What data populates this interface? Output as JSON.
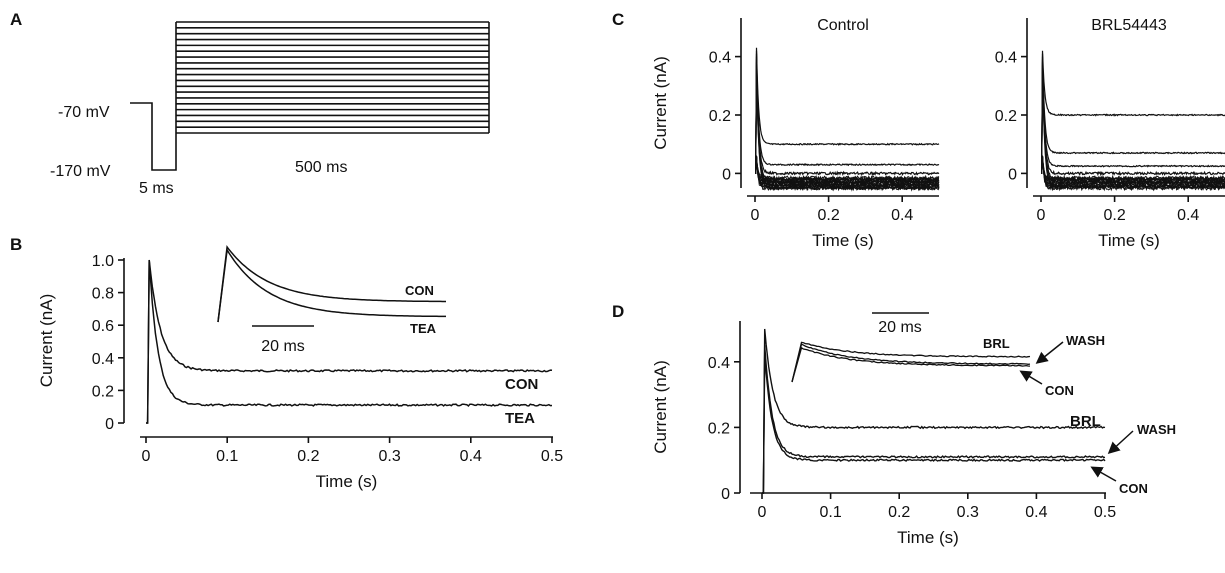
{
  "panels": {
    "A": {
      "label": "A",
      "hold_label": "-70 mV",
      "prepulse_label": "-170 mV",
      "prepulse_duration": "5 ms",
      "step_duration": "500 ms"
    },
    "B": {
      "label": "B"
    },
    "C": {
      "label": "C"
    },
    "D": {
      "label": "D"
    }
  },
  "chart_data": [
    {
      "id": "A",
      "type": "line",
      "title": "",
      "description_of_protocol": {
        "holding_mV": -70,
        "prepulse_mV": -170,
        "prepulse_ms": 5,
        "step_ms": 500,
        "step_count": 20
      }
    },
    {
      "id": "B",
      "type": "line",
      "xlabel": "Time (s)",
      "ylabel": "Current (nA)",
      "xlim": [
        0,
        0.5
      ],
      "ylim": [
        0,
        1.0
      ],
      "xticks": [
        "0",
        "0.1",
        "0.2",
        "0.3",
        "0.4",
        "0.5"
      ],
      "yticks": [
        "0",
        "0.2",
        "0.4",
        "0.6",
        "0.8",
        "1.0"
      ],
      "series": [
        {
          "name": "CON",
          "peak": 1.0,
          "steady": 0.32,
          "tau_s": 0.014
        },
        {
          "name": "TEA",
          "peak": 1.0,
          "steady": 0.11,
          "tau_s": 0.011
        }
      ],
      "inset": {
        "scale_bar": "20 ms",
        "labels": [
          "CON",
          "TEA"
        ]
      }
    },
    {
      "id": "C-control",
      "type": "line",
      "title": "Control",
      "xlabel": "Time (s)",
      "ylabel": "Current (nA)",
      "xlim": [
        0,
        0.5
      ],
      "ylim": [
        -0.05,
        0.45
      ],
      "xticks": [
        "0",
        "0.2",
        "0.4"
      ],
      "yticks": [
        "0",
        "0.2",
        "0.4"
      ],
      "steady_levels": [
        0.1,
        0.03,
        0.0,
        -0.02,
        -0.03,
        -0.04,
        -0.05
      ],
      "peak": 0.43
    },
    {
      "id": "C-brl",
      "type": "line",
      "title": "BRL54443",
      "xlabel": "Time (s)",
      "xlim": [
        0,
        0.5
      ],
      "ylim": [
        -0.05,
        0.45
      ],
      "xticks": [
        "0",
        "0.2",
        "0.4"
      ],
      "yticks": [
        "0",
        "0.2",
        "0.4"
      ],
      "steady_levels": [
        0.2,
        0.07,
        0.025,
        0.0,
        -0.02,
        -0.03,
        -0.045
      ],
      "peak": 0.42
    },
    {
      "id": "D",
      "type": "line",
      "xlabel": "Time (s)",
      "ylabel": "Current (nA)",
      "xlim": [
        0,
        0.5
      ],
      "ylim": [
        0,
        0.5
      ],
      "xticks": [
        "0",
        "0.1",
        "0.2",
        "0.3",
        "0.4",
        "0.5"
      ],
      "yticks": [
        "0",
        "0.2",
        "0.4"
      ],
      "series": [
        {
          "name": "BRL",
          "peak": 0.5,
          "steady": 0.2
        },
        {
          "name": "WASH",
          "peak": 0.45,
          "steady": 0.11
        },
        {
          "name": "CON",
          "peak": 0.42,
          "steady": 0.1
        }
      ],
      "inset": {
        "scale_bar": "20 ms",
        "labels": [
          "BRL",
          "WASH",
          "CON"
        ]
      }
    }
  ]
}
